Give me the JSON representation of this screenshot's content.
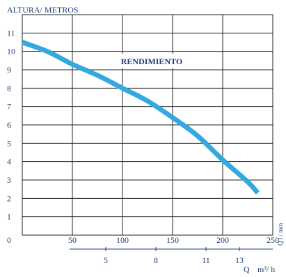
{
  "chart_data": {
    "type": "line",
    "title": "",
    "ylabel": "ALTURA/ METROS",
    "xlabel_primary_unit": "l / min",
    "xlabel_secondary": "Q",
    "xlabel_secondary_unit": "m³/ h",
    "xlabel_right_vertical": "Q l / min",
    "annotation": "RENDIMIENTO",
    "origin_label": "0",
    "xlim": [
      0,
      250
    ],
    "ylim": [
      0,
      12
    ],
    "x_ticks": [
      "50",
      "100",
      "150",
      "200",
      "250"
    ],
    "y_ticks": [
      "1",
      "2",
      "3",
      "4",
      "5",
      "6",
      "7",
      "8",
      "9",
      "10",
      "11"
    ],
    "x2_ticks": [
      {
        "label": "5",
        "value": 5
      },
      {
        "label": "8",
        "value": 8
      },
      {
        "label": "11",
        "value": 11
      },
      {
        "label": "13",
        "value": 13
      }
    ],
    "series": [
      {
        "name": "",
        "x": [
          0,
          25,
          50,
          75,
          100,
          125,
          150,
          175,
          200,
          225,
          235
        ],
        "y": [
          10.5,
          10.0,
          9.3,
          8.7,
          8.0,
          7.3,
          6.4,
          5.4,
          4.1,
          2.9,
          2.3
        ]
      }
    ],
    "grid": true,
    "colors": {
      "line": "#33a9df",
      "grid": "#222222",
      "text": "#1f3e7a"
    }
  }
}
